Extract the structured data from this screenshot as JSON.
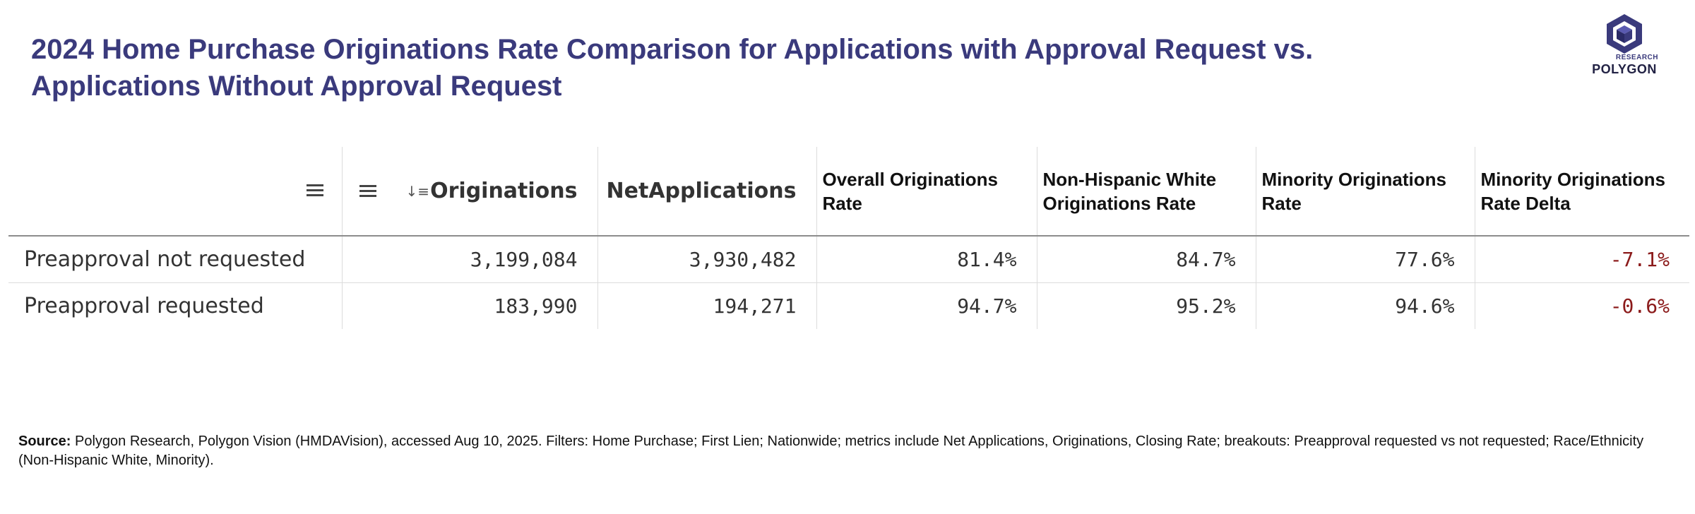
{
  "title": "2024 Home Purchase Originations Rate Comparison for Applications with Approval Request vs. Applications Without Approval Request",
  "logo": {
    "small_text": "RESEARCH",
    "brand_text": "POLYGON",
    "brand_color": "#3a3a7c"
  },
  "table": {
    "icons": {
      "row_dim_menu": "menu-icon",
      "col_menu": "menu-icon",
      "sort": "sort-descending-icon"
    },
    "sort_glyph": "↓≡",
    "columns": [
      "Originations",
      "NetApplications",
      "Overall Originations Rate",
      "Non-Hispanic White Originations Rate",
      "Minority Originations Rate",
      "Minority Originations Rate Delta"
    ],
    "rows": [
      {
        "label": "Preapproval not requested",
        "originations": "3,199,084",
        "net_applications": "3,930,482",
        "overall_rate": "81.4%",
        "nhw_rate": "84.7%",
        "minority_rate": "77.6%",
        "minority_delta": "-7.1%"
      },
      {
        "label": "Preapproval requested",
        "originations": "183,990",
        "net_applications": "194,271",
        "overall_rate": "94.7%",
        "nhw_rate": "95.2%",
        "minority_rate": "94.6%",
        "minority_delta": "-0.6%"
      }
    ],
    "colors": {
      "header_text": "#111111",
      "negative_delta": "#8b1a1a"
    }
  },
  "footnote": {
    "label": "Source:",
    "text": " Polygon Research, Polygon Vision (HMDAVision), accessed Aug 10, 2025. Filters: Home Purchase; First Lien; Nationwide; metrics include Net Applications, Originations, Closing Rate; breakouts: Preapproval requested vs not requested; Race/Ethnicity (Non-Hispanic White, Minority)."
  }
}
